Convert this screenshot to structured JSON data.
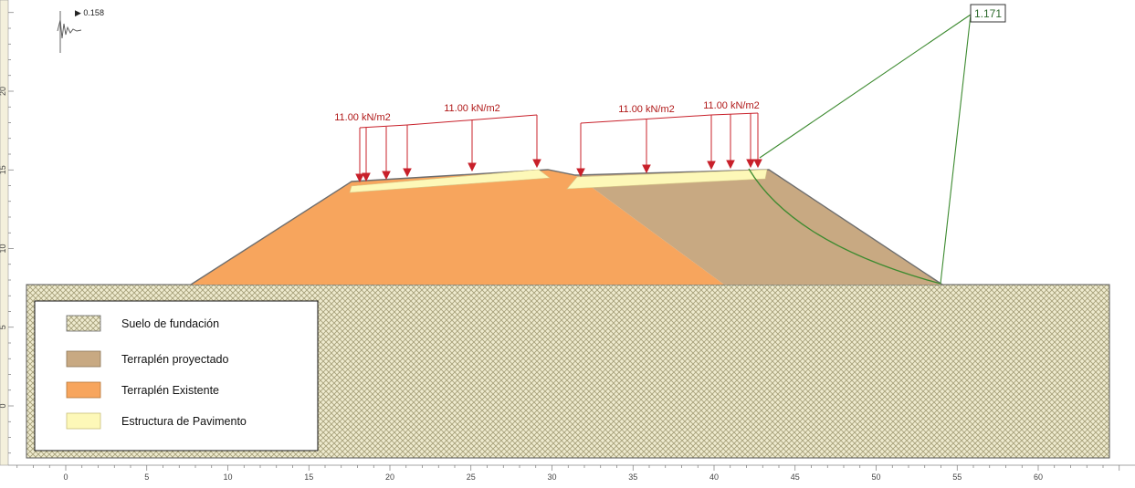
{
  "factor_of_safety": "1.171",
  "mini_indicator": {
    "label": "▶ 0.158"
  },
  "loads": [
    {
      "label": "11.00 kN/m2"
    },
    {
      "label": "11.00 kN/m2"
    },
    {
      "label": "11.00 kN/m2"
    },
    {
      "label": "11.00 kN/m2"
    }
  ],
  "legend": {
    "items": [
      {
        "label": "Suelo de fundación",
        "color": "#d4cfa3",
        "pattern": "crosshatch"
      },
      {
        "label": "Terraplén proyectado",
        "color": "#c8a982",
        "pattern": "solid"
      },
      {
        "label": "Terraplén Existente",
        "color": "#f7a55d",
        "pattern": "solid"
      },
      {
        "label": "Estructura de Pavimento",
        "color": "#fdf8b8",
        "pattern": "solid"
      }
    ]
  },
  "axes": {
    "x_ticks": [
      "0",
      "5",
      "10",
      "15",
      "20",
      "25",
      "30",
      "35",
      "40",
      "45",
      "50",
      "55",
      "60"
    ],
    "y_ticks": [
      "0",
      "5",
      "10",
      "15",
      "20"
    ]
  },
  "colors": {
    "load_arrow": "#c8202a",
    "slip_surface": "#3c8a2f",
    "outline": "#6e6e6e"
  }
}
